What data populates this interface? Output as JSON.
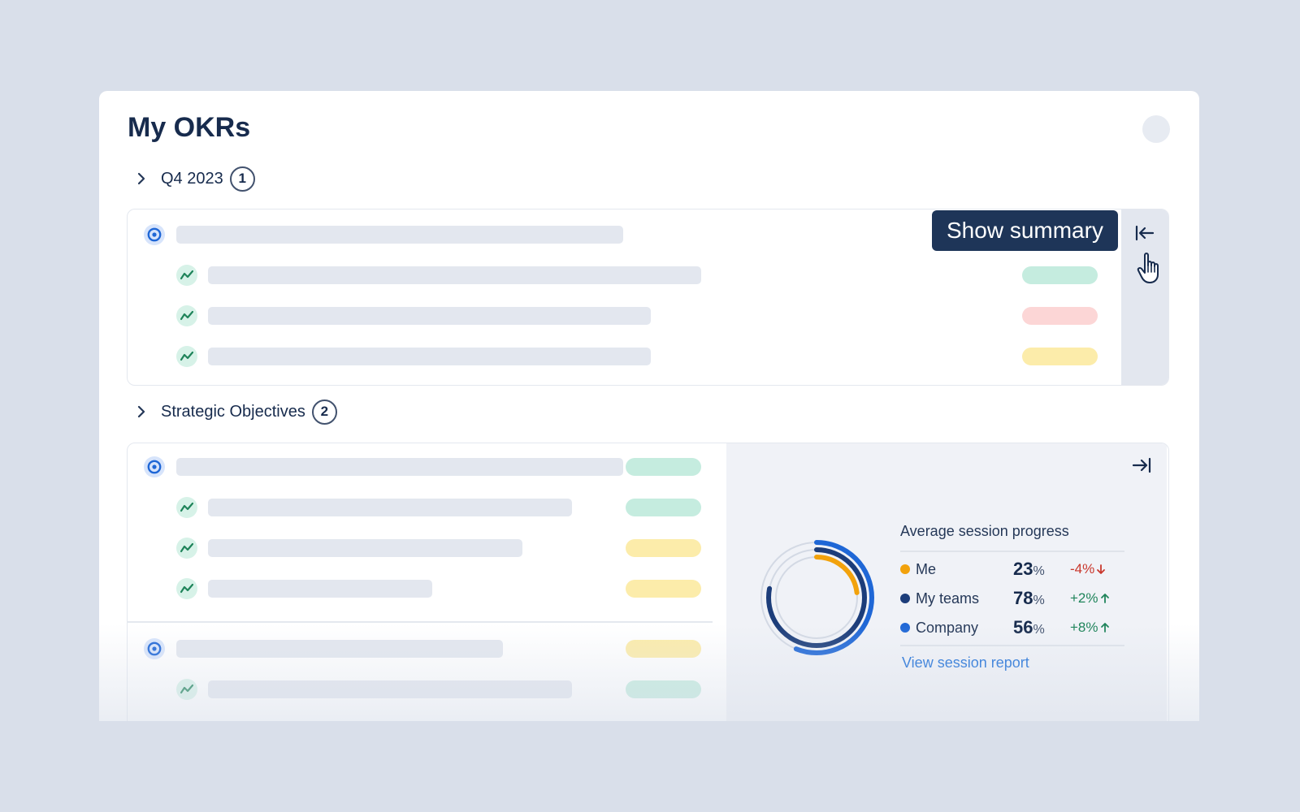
{
  "page": {
    "title": "My OKRs"
  },
  "sections": [
    {
      "label": "Q4 2023",
      "count": "1"
    },
    {
      "label": "Strategic Objectives",
      "count": "2"
    }
  ],
  "tooltip": {
    "text": "Show summary"
  },
  "summary": {
    "title": "Average session progress",
    "rows": [
      {
        "name": "Me",
        "value": "23",
        "unit": "%",
        "delta": "-4%",
        "direction": "down",
        "color": "#f2a20c"
      },
      {
        "name": "My teams",
        "value": "78",
        "unit": "%",
        "delta": "+2%",
        "direction": "up",
        "color": "#1c3d7a"
      },
      {
        "name": "Company",
        "value": "56",
        "unit": "%",
        "delta": "+8%",
        "direction": "up",
        "color": "#1f67d6"
      }
    ],
    "link": "View session report"
  },
  "status_colors": {
    "green": "#c5ecdf",
    "red": "#fcd6d6",
    "yellow": "#fcecaa"
  }
}
